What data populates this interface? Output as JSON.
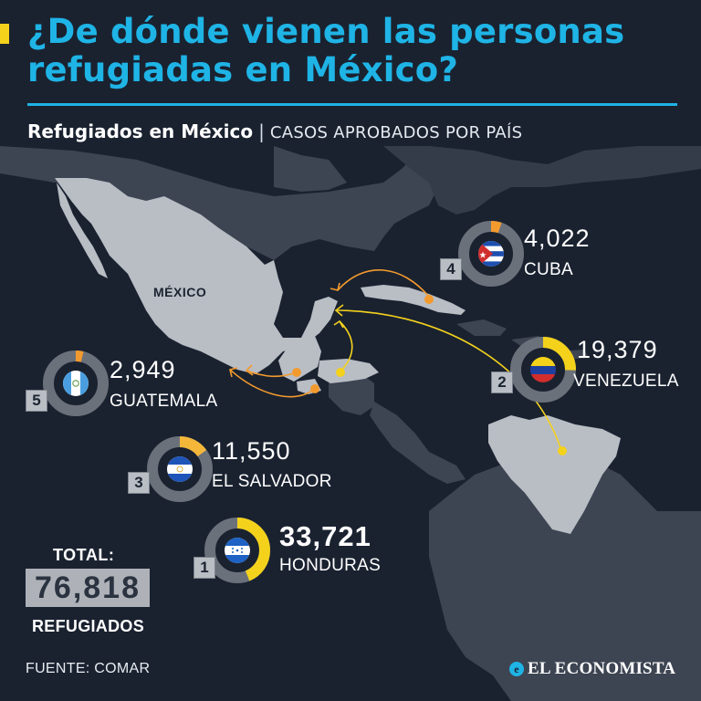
{
  "header": {
    "title": "¿De dónde vienen las personas refugiadas en México?",
    "subtitle_bold": "Refugiados en México",
    "subtitle_sep": "|",
    "subtitle_caps": "CASOS APROBADOS POR PAÍS"
  },
  "map": {
    "mexico_label": "MÉXICO"
  },
  "countries": [
    {
      "rank": "1",
      "count": "33,721",
      "name": "HONDURAS",
      "value": 33721,
      "icon": "honduras-flag-icon"
    },
    {
      "rank": "2",
      "count": "19,379",
      "name": "VENEZUELA",
      "value": 19379,
      "icon": "venezuela-flag-icon"
    },
    {
      "rank": "3",
      "count": "11,550",
      "name": "EL SALVADOR",
      "value": 11550,
      "icon": "el-salvador-flag-icon"
    },
    {
      "rank": "4",
      "count": "4,022",
      "name": "CUBA",
      "value": 4022,
      "icon": "cuba-flag-icon"
    },
    {
      "rank": "5",
      "count": "2,949",
      "name": "GUATEMALA",
      "value": 2949,
      "icon": "guatemala-flag-icon"
    }
  ],
  "total": {
    "label": "TOTAL:",
    "value": "76,818",
    "unit": "REFUGIADOS",
    "value_num": 76818
  },
  "footer": {
    "source": "FUENTE: COMAR",
    "brand": "EL ECONOMISTA",
    "brand_icon": "el-economista-logo-icon"
  },
  "colors": {
    "background": "#1a2230",
    "title": "#1fb4e6",
    "accent_yellow": "#f4d21c",
    "accent_orange": "#f39a2e",
    "land_highlight": "#b9bdc4",
    "land_other": "#3d4452",
    "ring_track": "#6b717b"
  }
}
